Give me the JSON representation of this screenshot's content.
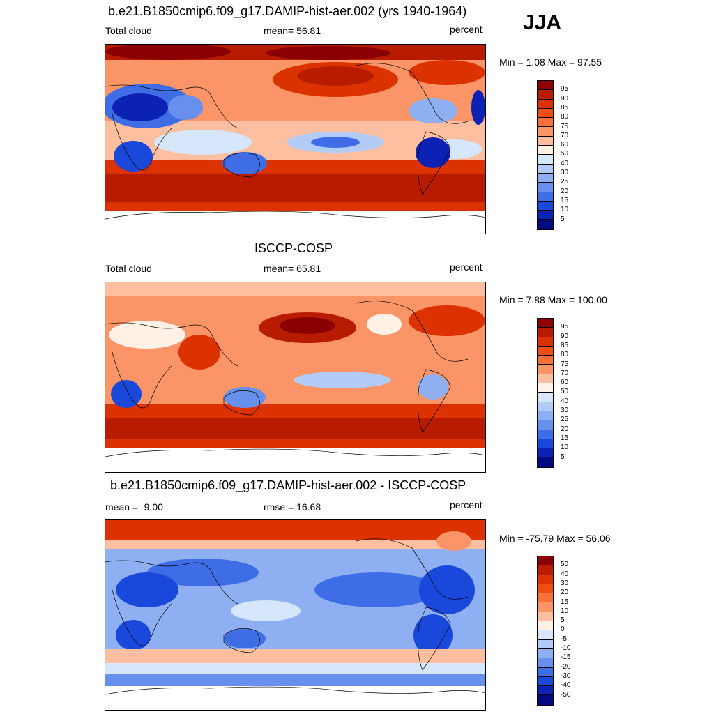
{
  "season": "JJA",
  "panels": [
    {
      "title": "b.e21.B1850cmip6.f09_g17.DAMIP-hist-aer.002 (yrs 1940-1964)",
      "left_label": "Total cloud",
      "center_label": "mean=  56.81",
      "units": "percent",
      "minmax": "Min =   1.08 Max =  97.55",
      "ticks": [
        "95",
        "90",
        "85",
        "80",
        "75",
        "70",
        "60",
        "50",
        "40",
        "30",
        "25",
        "20",
        "15",
        "10",
        "5"
      ]
    },
    {
      "title": "ISCCP-COSP",
      "left_label": "Total cloud",
      "center_label": "mean=  65.81",
      "units": "percent",
      "minmax": "Min =   7.88 Max = 100.00",
      "ticks": [
        "95",
        "90",
        "85",
        "80",
        "75",
        "70",
        "60",
        "50",
        "40",
        "30",
        "25",
        "20",
        "15",
        "10",
        "5"
      ]
    },
    {
      "title": "b.e21.B1850cmip6.f09_g17.DAMIP-hist-aer.002 - ISCCP-COSP",
      "left_label": "mean =  -9.00",
      "center_label": "rmse =  16.68",
      "units": "percent",
      "minmax": "Min = -75.79 Max =  56.06",
      "ticks": [
        "50",
        "40",
        "30",
        "20",
        "15",
        "10",
        "5",
        "0",
        "-5",
        "-10",
        "-15",
        "-20",
        "-30",
        "-40",
        "-50"
      ]
    }
  ],
  "colors": [
    "#8a0000",
    "#b71c00",
    "#dc3200",
    "#f04f13",
    "#f7703a",
    "#fb9466",
    "#fdbf9f",
    "#fff1e6",
    "#d6e6fb",
    "#b3cbf7",
    "#8eaff2",
    "#6690ec",
    "#3e6de5",
    "#1a48db",
    "#0b22b4",
    "#020a82"
  ]
}
